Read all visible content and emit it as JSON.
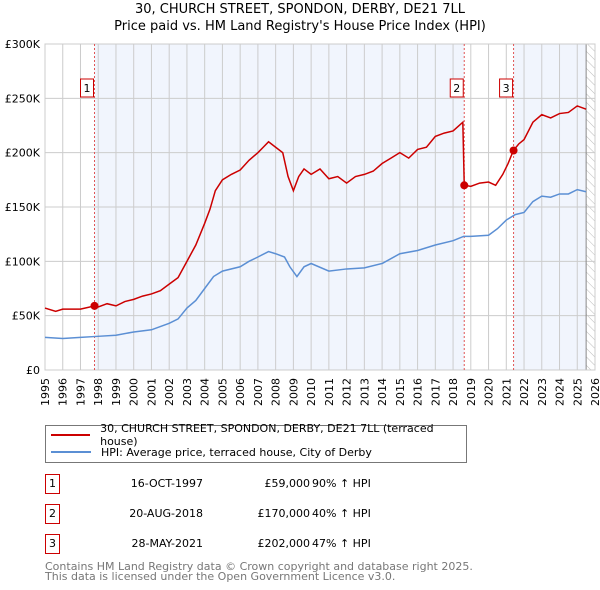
{
  "chart_data": {
    "type": "line",
    "title": "30, CHURCH STREET, SPONDON, DERBY, DE21 7LL",
    "subtitle": "Price paid vs. HM Land Registry's House Price Index (HPI)",
    "xlim": [
      1995,
      2026
    ],
    "ylim": [
      0,
      300000
    ],
    "y_ticks": [
      0,
      50000,
      100000,
      150000,
      200000,
      250000,
      300000
    ],
    "y_tick_labels": [
      "£0",
      "£50K",
      "£100K",
      "£150K",
      "£200K",
      "£250K",
      "£300K"
    ],
    "x_ticks": [
      1995,
      1996,
      1997,
      1998,
      1999,
      2000,
      2001,
      2002,
      2003,
      2004,
      2005,
      2006,
      2007,
      2008,
      2009,
      2010,
      2011,
      2012,
      2013,
      2014,
      2015,
      2016,
      2017,
      2018,
      2019,
      2020,
      2021,
      2022,
      2023,
      2024,
      2025,
      2026
    ],
    "grid": true,
    "series": [
      {
        "name": "30, CHURCH STREET, SPONDON, DERBY, DE21 7LL (terraced house)",
        "color": "#cc0000",
        "points": [
          [
            1995,
            57
          ],
          [
            1995.6,
            54
          ],
          [
            1996,
            56
          ],
          [
            1997,
            56
          ],
          [
            1997.8,
            59
          ],
          [
            1998,
            58
          ],
          [
            1998.5,
            61
          ],
          [
            1999,
            59
          ],
          [
            1999.5,
            63
          ],
          [
            2000,
            65
          ],
          [
            2000.5,
            68
          ],
          [
            2001,
            70
          ],
          [
            2001.5,
            73
          ],
          [
            2002,
            79
          ],
          [
            2002.5,
            85
          ],
          [
            2003,
            100
          ],
          [
            2003.5,
            115
          ],
          [
            2004,
            135
          ],
          [
            2004.3,
            148
          ],
          [
            2004.6,
            165
          ],
          [
            2005,
            175
          ],
          [
            2005.5,
            180
          ],
          [
            2006,
            184
          ],
          [
            2006.5,
            193
          ],
          [
            2007,
            200
          ],
          [
            2007.3,
            205
          ],
          [
            2007.6,
            210
          ],
          [
            2008,
            205
          ],
          [
            2008.4,
            200
          ],
          [
            2008.7,
            178
          ],
          [
            2009,
            165
          ],
          [
            2009.3,
            178
          ],
          [
            2009.6,
            185
          ],
          [
            2010,
            180
          ],
          [
            2010.5,
            185
          ],
          [
            2011,
            176
          ],
          [
            2011.5,
            178
          ],
          [
            2012,
            172
          ],
          [
            2012.5,
            178
          ],
          [
            2013,
            180
          ],
          [
            2013.5,
            183
          ],
          [
            2014,
            190
          ],
          [
            2014.5,
            195
          ],
          [
            2015,
            200
          ],
          [
            2015.5,
            195
          ],
          [
            2016,
            203
          ],
          [
            2016.5,
            205
          ],
          [
            2017,
            215
          ],
          [
            2017.5,
            218
          ],
          [
            2018,
            220
          ],
          [
            2018.55,
            228
          ],
          [
            2018.63,
            170
          ],
          [
            2019,
            169
          ],
          [
            2019.5,
            172
          ],
          [
            2020,
            173
          ],
          [
            2020.4,
            170
          ],
          [
            2020.8,
            180
          ],
          [
            2021.1,
            190
          ],
          [
            2021.4,
            202
          ],
          [
            2021.7,
            208
          ],
          [
            2022,
            212
          ],
          [
            2022.5,
            228
          ],
          [
            2023,
            235
          ],
          [
            2023.5,
            232
          ],
          [
            2024,
            236
          ],
          [
            2024.5,
            237
          ],
          [
            2025,
            243
          ],
          [
            2025.5,
            240
          ]
        ]
      },
      {
        "name": "HPI: Average price, terraced house, City of Derby",
        "color": "#5b8fd4",
        "points": [
          [
            1995,
            30
          ],
          [
            1996,
            29
          ],
          [
            1997,
            30
          ],
          [
            1998,
            31
          ],
          [
            1999,
            32
          ],
          [
            2000,
            35
          ],
          [
            2001,
            37
          ],
          [
            2002,
            43
          ],
          [
            2002.5,
            47
          ],
          [
            2003,
            57
          ],
          [
            2003.5,
            64
          ],
          [
            2004,
            75
          ],
          [
            2004.5,
            86
          ],
          [
            2005,
            91
          ],
          [
            2006,
            95
          ],
          [
            2006.5,
            100
          ],
          [
            2007,
            104
          ],
          [
            2007.6,
            109
          ],
          [
            2008,
            107
          ],
          [
            2008.5,
            104
          ],
          [
            2008.8,
            95
          ],
          [
            2009.2,
            86
          ],
          [
            2009.6,
            95
          ],
          [
            2010,
            98
          ],
          [
            2011,
            91
          ],
          [
            2012,
            93
          ],
          [
            2013,
            94
          ],
          [
            2014,
            98
          ],
          [
            2015,
            107
          ],
          [
            2016,
            110
          ],
          [
            2017,
            115
          ],
          [
            2018,
            119
          ],
          [
            2018.6,
            123
          ],
          [
            2019,
            123
          ],
          [
            2020,
            124
          ],
          [
            2020.5,
            130
          ],
          [
            2021,
            138
          ],
          [
            2021.5,
            143
          ],
          [
            2022,
            145
          ],
          [
            2022.5,
            155
          ],
          [
            2023,
            160
          ],
          [
            2023.5,
            159
          ],
          [
            2024,
            162
          ],
          [
            2024.5,
            162
          ],
          [
            2025,
            166
          ],
          [
            2025.5,
            164
          ]
        ]
      }
    ],
    "y_unit": "thousands GBP",
    "sales": [
      {
        "label": "1",
        "x": 1997.79,
        "value": 59,
        "date": "16-OCT-1997",
        "price": "£59,000",
        "hpi": "90% ↑ HPI"
      },
      {
        "label": "2",
        "x": 2018.63,
        "value": 170,
        "date": "20-AUG-2018",
        "price": "£170,000",
        "hpi": "40% ↑ HPI"
      },
      {
        "label": "3",
        "x": 2021.41,
        "value": 202,
        "date": "28-MAY-2021",
        "price": "£202,000",
        "hpi": "47% ↑ HPI"
      }
    ],
    "shaded": [
      [
        1997.79,
        2018.63
      ],
      [
        2021.41,
        2025.5
      ]
    ],
    "forecast_from": 2025.5,
    "legend_placement": "bottom"
  },
  "footer": [
    "Contains HM Land Registry data © Crown copyright and database right 2025.",
    "This data is licensed under the Open Government Licence v3.0."
  ]
}
